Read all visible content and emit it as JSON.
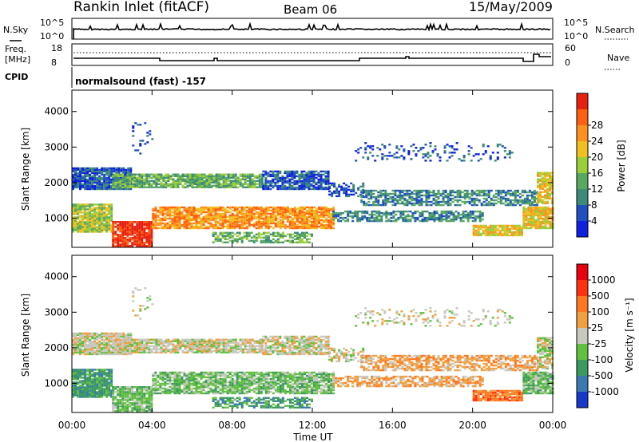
{
  "header": {
    "title": "Rankin Inlet (fitACF)",
    "beam": "Beam 06",
    "date": "15/May/2009"
  },
  "top_panels": {
    "nsky_label": "N.Sky",
    "nsky_ticks": [
      "10^5",
      "10^0"
    ],
    "nsearch_label": "N.Search",
    "nsearch_ticks": [
      "10^5",
      "10^0"
    ],
    "freq_label_1": "Freq.",
    "freq_label_2": "[MHz]",
    "freq_ticks": [
      "18",
      "8"
    ],
    "nave_label": "Nave",
    "nave_ticks": [
      "60",
      "0"
    ],
    "cpid_label": "CPID",
    "cpid_value": "normalsound (fast) -157"
  },
  "chart_data": [
    {
      "type": "heatmap",
      "name": "power",
      "ylabel": "Slant Range [km]",
      "yticks": [
        "1000",
        "2000",
        "3000",
        "4000"
      ],
      "ylim": [
        180,
        4600
      ],
      "colorbar_label": "Power [dB]",
      "colorbar_ticks": [
        "4",
        "8",
        "12",
        "16",
        "20",
        "24",
        "28"
      ],
      "colors": [
        "#1020e0",
        "#2050c0",
        "#3c8a78",
        "#58a860",
        "#9acd3a",
        "#f0c020",
        "#ff9020",
        "#ff6010",
        "#e82010"
      ],
      "grid": false
    },
    {
      "type": "heatmap",
      "name": "velocity",
      "ylabel": "Slant Range [km]",
      "yticks": [
        "1000",
        "2000",
        "3000",
        "4000"
      ],
      "ylim": [
        180,
        4600
      ],
      "colorbar_label": "Velocity [m s⁻¹]",
      "colorbar_ticks": [
        "1000",
        "500",
        "100",
        "25",
        "-25",
        "-100",
        "-500",
        "-1000"
      ],
      "colors": [
        "#1838c8",
        "#3a7ab0",
        "#3c9a60",
        "#60c040",
        "#c8c8c0",
        "#f0a040",
        "#ff7820",
        "#ff3010",
        "#e80010"
      ],
      "grid": false
    }
  ],
  "xaxis": {
    "label": "Time UT",
    "ticks": [
      "00:00",
      "04:00",
      "08:00",
      "12:00",
      "16:00",
      "20:00",
      "00:00"
    ]
  }
}
